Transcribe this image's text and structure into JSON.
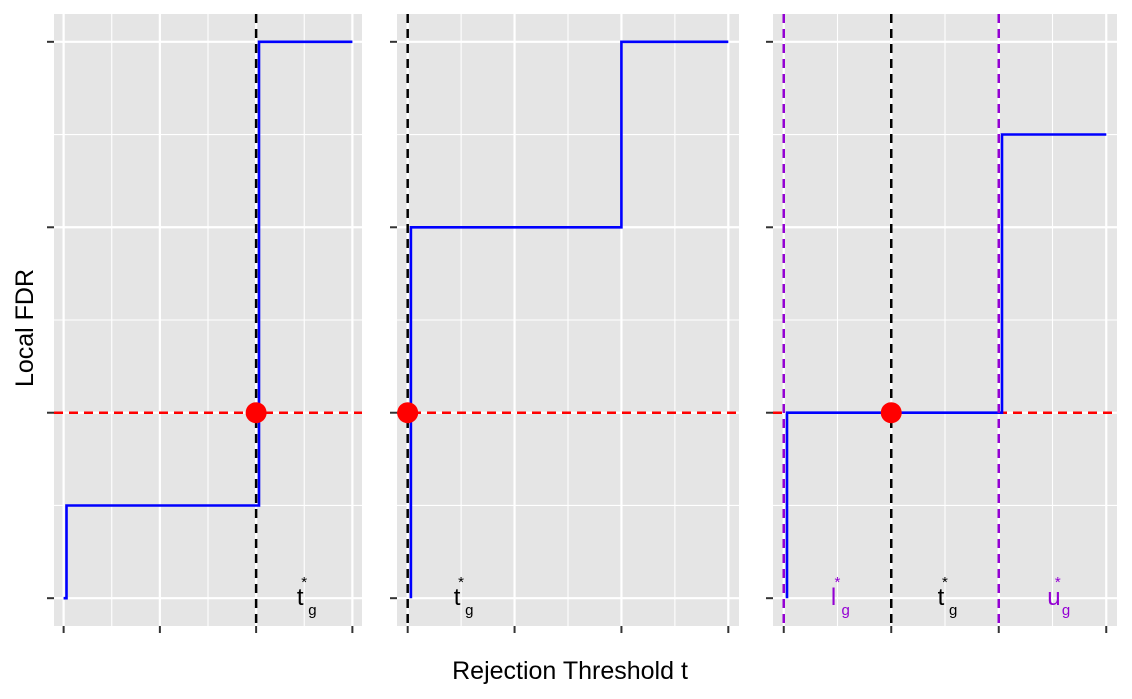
{
  "chart_data": {
    "type": "line",
    "xlabel": "Rejection Threshold t",
    "ylabel": "Local FDR",
    "colors": {
      "panel_background": "#e5e5e5",
      "grid": "#ffffff",
      "step_line": "#0000ff",
      "threshold_line": "#ff0000",
      "t_star_line": "#000000",
      "bounds_line": "#9400d3",
      "point": "#ff0000",
      "ticks": "#333333"
    },
    "y_breaks": [
      0,
      1,
      2,
      3
    ],
    "threshold_level": 1,
    "panels": [
      {
        "xlim": [
          -0.1,
          3.1
        ],
        "ylim": [
          -0.15,
          3.15
        ],
        "x_breaks": [
          0,
          1,
          2,
          3
        ],
        "step": {
          "x": [
            0,
            0.03,
            0.03,
            2.0,
            2.03,
            2.03,
            3.0
          ],
          "y": [
            0,
            0,
            0.5,
            0.5,
            0.5,
            3,
            3
          ]
        },
        "verticals": [
          {
            "x": 2.0,
            "color": "#000000"
          }
        ],
        "point": {
          "x": 2.0,
          "y": 1
        },
        "annotations": [
          {
            "text": "t",
            "sub": "g",
            "star": "*",
            "x": 2.5,
            "color": "#000000"
          }
        ]
      },
      {
        "xlim": [
          -0.1,
          3.1
        ],
        "ylim": [
          -0.15,
          3.15
        ],
        "x_breaks": [
          0,
          1,
          2,
          3
        ],
        "step": {
          "x": [
            0.03,
            0.03,
            2.0,
            2.0,
            3.0
          ],
          "y": [
            0,
            2,
            2,
            3,
            3
          ]
        },
        "verticals": [
          {
            "x": 0.0,
            "color": "#000000"
          }
        ],
        "point": {
          "x": 0.0,
          "y": 1
        },
        "annotations": [
          {
            "text": "t",
            "sub": "g",
            "star": "*",
            "x": 0.5,
            "color": "#000000"
          }
        ]
      },
      {
        "xlim": [
          -0.1,
          3.1
        ],
        "ylim": [
          -0.15,
          3.15
        ],
        "x_breaks": [
          0,
          1,
          2,
          3
        ],
        "step": {
          "x": [
            0.03,
            0.03,
            2.03,
            2.03,
            3.0
          ],
          "y": [
            0,
            1,
            1,
            2.5,
            2.5
          ]
        },
        "verticals": [
          {
            "x": 0.0,
            "color": "#9400d3"
          },
          {
            "x": 1.0,
            "color": "#000000"
          },
          {
            "x": 2.0,
            "color": "#9400d3"
          }
        ],
        "point": {
          "x": 1.0,
          "y": 1
        },
        "annotations": [
          {
            "text": "l",
            "sub": "g",
            "star": "*",
            "x": 0.5,
            "color": "#9400d3"
          },
          {
            "text": "t",
            "sub": "g",
            "star": "*",
            "x": 1.5,
            "color": "#000000"
          },
          {
            "text": "u",
            "sub": "g",
            "star": "*",
            "x": 2.55,
            "color": "#9400d3"
          }
        ]
      }
    ]
  }
}
